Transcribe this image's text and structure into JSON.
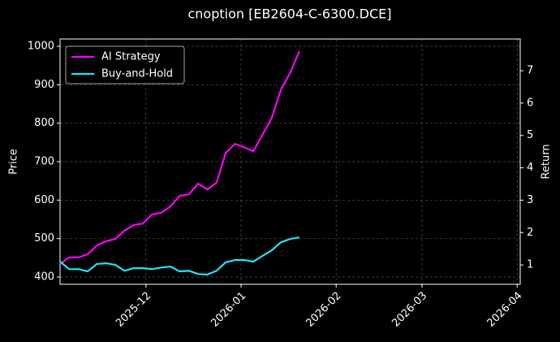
{
  "chart_data": {
    "type": "line",
    "title": "cnoption [EB2604-C-6300.DCE]",
    "ylabel": "Price",
    "y2label": "Return",
    "x": [
      20395,
      20398,
      20401,
      20404,
      20407,
      20410,
      20413,
      20416,
      20419,
      20422,
      20425,
      20428,
      20431,
      20434,
      20437,
      20440,
      20443,
      20446,
      20449,
      20452,
      20455,
      20458,
      20461,
      20464,
      20467,
      20470,
      20473
    ],
    "xlim": [
      20395,
      20545
    ],
    "xticks": [
      {
        "value": 20423,
        "label": "2025-12"
      },
      {
        "value": 20454,
        "label": "2026-01"
      },
      {
        "value": 20485,
        "label": "2026-02"
      },
      {
        "value": 20513,
        "label": "2026-03"
      },
      {
        "value": 20544,
        "label": "2026-04"
      }
    ],
    "ylim": [
      381,
      1019
    ],
    "yticks": [
      400,
      500,
      600,
      700,
      800,
      900,
      1000
    ],
    "y2lim": [
      0.4,
      7.98
    ],
    "y2ticks": [
      1,
      2,
      3,
      4,
      5,
      6,
      7
    ],
    "grid": true,
    "legend": "upper left",
    "series": [
      {
        "name": "AI Strategy",
        "color": "#ff00ff",
        "axis": "y2",
        "values": [
          1.03,
          1.23,
          1.23,
          1.33,
          1.6,
          1.73,
          1.8,
          2.06,
          2.23,
          2.28,
          2.56,
          2.61,
          2.81,
          3.13,
          3.18,
          3.51,
          3.33,
          3.54,
          4.46,
          4.74,
          4.64,
          4.51,
          5.02,
          5.54,
          6.42,
          6.93,
          7.6
        ]
      },
      {
        "name": "Buy-and-Hold",
        "color": "#22e4f0",
        "axis": "y2",
        "values": [
          1.1,
          0.87,
          0.87,
          0.8,
          1.03,
          1.05,
          1.0,
          0.82,
          0.9,
          0.9,
          0.87,
          0.92,
          0.95,
          0.8,
          0.82,
          0.72,
          0.7,
          0.82,
          1.08,
          1.15,
          1.15,
          1.1,
          1.28,
          1.45,
          1.7,
          1.8,
          1.85
        ]
      }
    ]
  }
}
